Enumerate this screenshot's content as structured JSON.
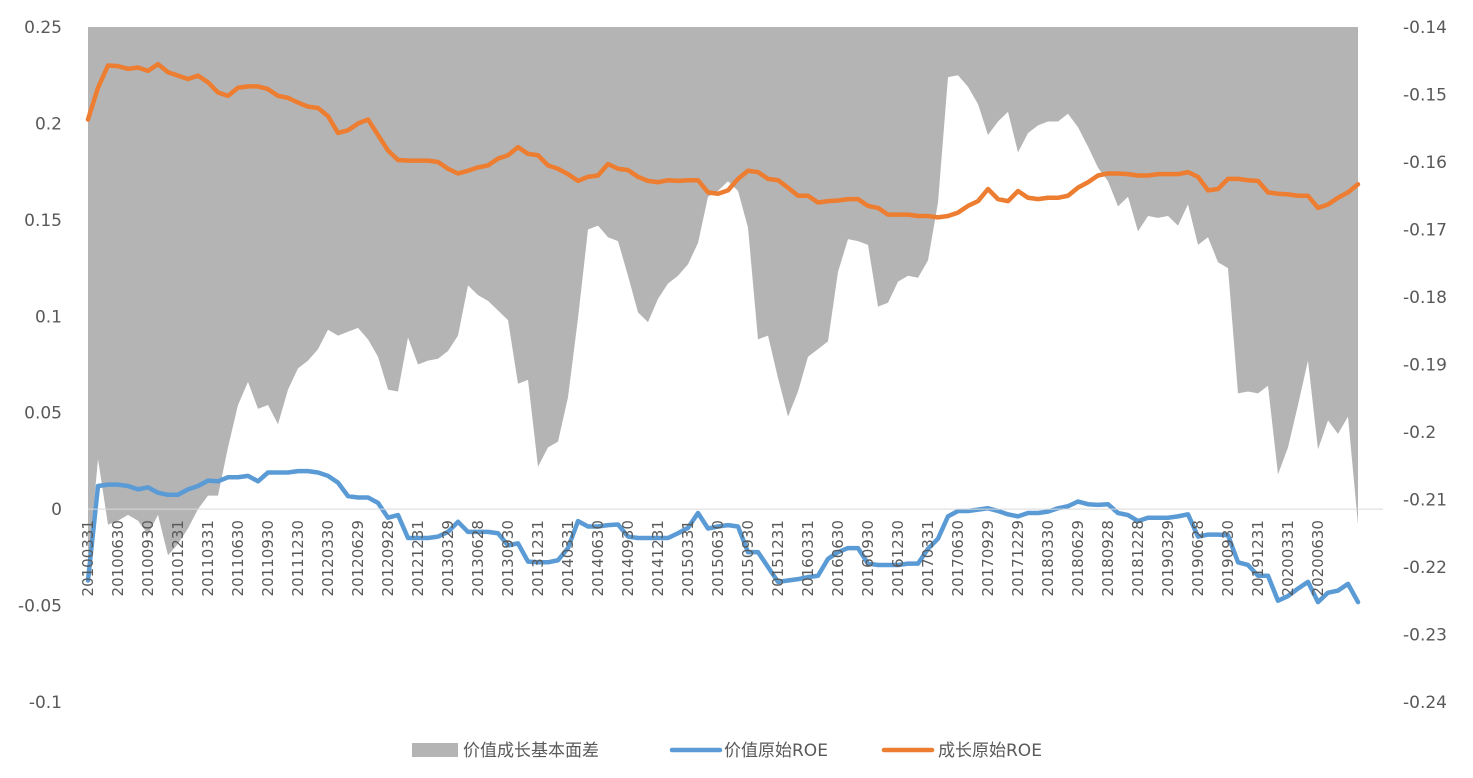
{
  "chart_data": {
    "type": "area",
    "series": [
      {
        "name": "价值成长基本面差",
        "axis": "left",
        "color": "#b4b4b4",
        "type": "area",
        "values": [
          -0.031,
          0.026,
          -0.008,
          -0.006,
          -0.003,
          -0.006,
          -0.013,
          -0.003,
          -0.024,
          -0.018,
          -0.01,
          0.0,
          0.007,
          0.007,
          0.032,
          0.054,
          0.066,
          0.052,
          0.054,
          0.044,
          0.062,
          0.073,
          0.077,
          0.083,
          0.093,
          0.09,
          0.092,
          0.094,
          0.088,
          0.079,
          0.062,
          0.061,
          0.089,
          0.075,
          0.077,
          0.078,
          0.082,
          0.09,
          0.116,
          0.111,
          0.108,
          0.103,
          0.098,
          0.065,
          0.067,
          0.022,
          0.032,
          0.035,
          0.058,
          0.099,
          0.145,
          0.147,
          0.141,
          0.139,
          0.121,
          0.102,
          0.097,
          0.109,
          0.117,
          0.121,
          0.127,
          0.138,
          0.162,
          0.165,
          0.17,
          0.165,
          0.146,
          0.088,
          0.09,
          0.068,
          0.048,
          0.061,
          0.079,
          0.083,
          0.087,
          0.123,
          0.14,
          0.139,
          0.137,
          0.105,
          0.107,
          0.118,
          0.121,
          0.12,
          0.129,
          0.159,
          0.224,
          0.225,
          0.219,
          0.21,
          0.194,
          0.201,
          0.206,
          0.185,
          0.195,
          0.199,
          0.201,
          0.201,
          0.205,
          0.198,
          0.188,
          0.177,
          0.17,
          0.157,
          0.162,
          0.144,
          0.152,
          0.151,
          0.152,
          0.147,
          0.158,
          0.137,
          0.141,
          0.128,
          0.125,
          0.06,
          0.061,
          0.06,
          0.064,
          0.018,
          0.032,
          0.054,
          0.077,
          0.031,
          0.046,
          0.039,
          0.048,
          -0.008
        ]
      },
      {
        "name": "价值原始ROE",
        "axis": "right",
        "color": "#5b9bd5",
        "type": "line",
        "values": [
          -0.222,
          -0.208,
          -0.2078,
          -0.2078,
          -0.208,
          -0.2085,
          -0.2082,
          -0.209,
          -0.2093,
          -0.2093,
          -0.2085,
          -0.208,
          -0.2072,
          -0.2073,
          -0.2067,
          -0.2067,
          -0.2065,
          -0.2073,
          -0.206,
          -0.206,
          -0.206,
          -0.2058,
          -0.2058,
          -0.206,
          -0.2065,
          -0.2075,
          -0.2095,
          -0.2097,
          -0.2097,
          -0.2105,
          -0.2127,
          -0.2123,
          -0.2157,
          -0.2157,
          -0.2157,
          -0.2155,
          -0.2148,
          -0.2133,
          -0.2148,
          -0.2148,
          -0.2148,
          -0.215,
          -0.2168,
          -0.2165,
          -0.2192,
          -0.2193,
          -0.2193,
          -0.219,
          -0.2172,
          -0.2132,
          -0.214,
          -0.214,
          -0.2138,
          -0.2137,
          -0.2155,
          -0.2157,
          -0.2157,
          -0.2157,
          -0.2157,
          -0.215,
          -0.2142,
          -0.212,
          -0.2143,
          -0.214,
          -0.2138,
          -0.214,
          -0.2178,
          -0.2178,
          -0.22,
          -0.2222,
          -0.222,
          -0.2218,
          -0.2215,
          -0.2213,
          -0.2188,
          -0.2178,
          -0.2172,
          -0.2172,
          -0.2195,
          -0.2197,
          -0.2197,
          -0.2197,
          -0.2195,
          -0.2195,
          -0.2173,
          -0.2158,
          -0.2125,
          -0.2117,
          -0.2117,
          -0.2115,
          -0.2113,
          -0.2117,
          -0.2122,
          -0.2125,
          -0.212,
          -0.212,
          -0.2118,
          -0.2113,
          -0.211,
          -0.2103,
          -0.2107,
          -0.2108,
          -0.2107,
          -0.212,
          -0.2123,
          -0.2132,
          -0.2127,
          -0.2127,
          -0.2127,
          -0.2125,
          -0.2122,
          -0.2155,
          -0.2152,
          -0.2152,
          -0.2153,
          -0.2193,
          -0.2197,
          -0.2213,
          -0.2213,
          -0.225,
          -0.2243,
          -0.2232,
          -0.2222,
          -0.2252,
          -0.2238,
          -0.2235,
          -0.2225,
          -0.2252
        ]
      },
      {
        "name": "成长原始ROE",
        "axis": "right",
        "color": "#ed7d31",
        "type": "line",
        "values": [
          -0.1537,
          -0.149,
          -0.1457,
          -0.1458,
          -0.1462,
          -0.146,
          -0.1465,
          -0.1455,
          -0.1467,
          -0.1472,
          -0.1477,
          -0.1472,
          -0.1482,
          -0.1497,
          -0.1502,
          -0.149,
          -0.1488,
          -0.1488,
          -0.1492,
          -0.1502,
          -0.1505,
          -0.1512,
          -0.1518,
          -0.152,
          -0.1532,
          -0.1557,
          -0.1553,
          -0.1543,
          -0.1537,
          -0.156,
          -0.1583,
          -0.1597,
          -0.1598,
          -0.1598,
          -0.1598,
          -0.16,
          -0.161,
          -0.1617,
          -0.1613,
          -0.1608,
          -0.1605,
          -0.1595,
          -0.159,
          -0.1578,
          -0.1588,
          -0.159,
          -0.1605,
          -0.161,
          -0.1618,
          -0.1628,
          -0.1622,
          -0.162,
          -0.1603,
          -0.161,
          -0.1612,
          -0.1622,
          -0.1628,
          -0.163,
          -0.1627,
          -0.1628,
          -0.1627,
          -0.1627,
          -0.1645,
          -0.1647,
          -0.1642,
          -0.1625,
          -0.1613,
          -0.1615,
          -0.1625,
          -0.1627,
          -0.1638,
          -0.165,
          -0.165,
          -0.166,
          -0.1658,
          -0.1657,
          -0.1655,
          -0.1655,
          -0.1665,
          -0.1668,
          -0.1678,
          -0.1678,
          -0.1678,
          -0.168,
          -0.168,
          -0.1682,
          -0.168,
          -0.1675,
          -0.1665,
          -0.1658,
          -0.164,
          -0.1655,
          -0.1658,
          -0.1643,
          -0.1653,
          -0.1655,
          -0.1653,
          -0.1653,
          -0.165,
          -0.1638,
          -0.163,
          -0.162,
          -0.1617,
          -0.1617,
          -0.1618,
          -0.162,
          -0.162,
          -0.1618,
          -0.1618,
          -0.1618,
          -0.1615,
          -0.1622,
          -0.1642,
          -0.164,
          -0.1625,
          -0.1625,
          -0.1627,
          -0.1628,
          -0.1645,
          -0.1647,
          -0.1648,
          -0.165,
          -0.165,
          -0.1668,
          -0.1663,
          -0.1653,
          -0.1645,
          -0.1633
        ]
      }
    ],
    "x_tick_labels": [
      "20100331",
      "20100630",
      "20100930",
      "20101231",
      "20110331",
      "20110630",
      "20110930",
      "20111230",
      "20120330",
      "20120629",
      "20120928",
      "20121231",
      "20130329",
      "20130628",
      "20130930",
      "20131231",
      "20140331",
      "20140630",
      "20140930",
      "20141231",
      "20150331",
      "20150630",
      "20150930",
      "20151231",
      "20160331",
      "20160630",
      "20160930",
      "20161230",
      "20170331",
      "20170630",
      "20170929",
      "20171229",
      "20180330",
      "20180629",
      "20180928",
      "20181228",
      "20190329",
      "20190628",
      "20190930",
      "20191231",
      "20200331",
      "20200630"
    ],
    "left_axis": {
      "min": -0.1,
      "max": 0.25,
      "ticks": [
        "-0.1",
        "-0.05",
        "0",
        "0.05",
        "0.1",
        "0.15",
        "0.2",
        "0.25"
      ]
    },
    "right_axis": {
      "min": -0.24,
      "max": -0.14,
      "ticks": [
        "-0.24",
        "-0.23",
        "-0.22",
        "-0.21",
        "-0.2",
        "-0.19",
        "-0.18",
        "-0.17",
        "-0.16",
        "-0.15",
        "-0.14"
      ]
    },
    "grid": false,
    "legend": {
      "position": "bottom"
    }
  }
}
